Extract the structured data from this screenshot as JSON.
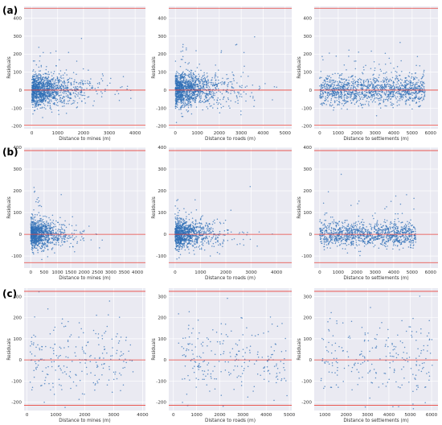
{
  "figure": {
    "row_labels": [
      "(a)",
      "(b)",
      "(c)"
    ],
    "colors": {
      "plot_background": "#eaeaf2",
      "grid": "#ffffff",
      "point": "#2f6fb5",
      "reference_line": "#e8413a",
      "tick_text": "#333333"
    }
  },
  "chart_data": [
    {
      "type": "scatter",
      "row": "(a)",
      "title": "",
      "xlabel": "Distance to mines (m)",
      "ylabel": "Residuals",
      "xlim": [
        -300,
        4400
      ],
      "ylim": [
        -215,
        465
      ],
      "xticks": [
        0,
        1000,
        2000,
        3000,
        4000
      ],
      "yticks": [
        -200,
        -100,
        0,
        100,
        200,
        300,
        400
      ],
      "hlines": [
        -195,
        0,
        455
      ],
      "grid": true,
      "cloud": {
        "n": 1300,
        "x_scale": 650,
        "x_max": 4200,
        "y_sd": 42,
        "tail": 0.06,
        "tail_sd": 130
      }
    },
    {
      "type": "scatter",
      "row": "(a)",
      "title": "",
      "xlabel": "Distance to roads (m)",
      "ylabel": "Residuals",
      "xlim": [
        -300,
        5300
      ],
      "ylim": [
        -215,
        465
      ],
      "xticks": [
        0,
        1000,
        2000,
        3000,
        4000,
        5000
      ],
      "yticks": [
        -200,
        -100,
        0,
        100,
        200,
        300,
        400
      ],
      "hlines": [
        -195,
        0,
        455
      ],
      "grid": true,
      "cloud": {
        "n": 1300,
        "x_scale": 800,
        "x_max": 4900,
        "y_sd": 45,
        "tail": 0.06,
        "tail_sd": 130
      }
    },
    {
      "type": "scatter",
      "row": "(a)",
      "title": "",
      "xlabel": "Distance to settlements (m)",
      "ylabel": "Residuals",
      "xlim": [
        -300,
        6400
      ],
      "ylim": [
        -215,
        465
      ],
      "xticks": [
        0,
        1000,
        2000,
        3000,
        4000,
        5000,
        6000
      ],
      "yticks": [
        -200,
        -100,
        0,
        100,
        200,
        300,
        400
      ],
      "hlines": [
        -195,
        0,
        455
      ],
      "grid": true,
      "cloud": {
        "n": 1300,
        "x_mode": "uniform",
        "x_min": 0,
        "x_max": 5700,
        "y_sd": 40,
        "tail": 0.08,
        "tail_sd": 120
      }
    },
    {
      "type": "scatter",
      "row": "(b)",
      "title": "",
      "xlabel": "Distance to mines (m)",
      "ylabel": "Residuals",
      "xlim": [
        -250,
        4300
      ],
      "ylim": [
        -155,
        400
      ],
      "xticks": [
        0,
        500,
        1000,
        1500,
        2000,
        2500,
        3000,
        3500,
        4000
      ],
      "yticks": [
        -100,
        0,
        100,
        200,
        300,
        400
      ],
      "hlines": [
        -130,
        0,
        385
      ],
      "grid": true,
      "cloud": {
        "n": 1100,
        "x_scale": 450,
        "x_max": 4100,
        "y_sd": 32,
        "tail": 0.07,
        "tail_sd": 90
      }
    },
    {
      "type": "scatter",
      "row": "(b)",
      "title": "",
      "xlabel": "Distance to roads (m)",
      "ylabel": "Residuals",
      "xlim": [
        -250,
        4600
      ],
      "ylim": [
        -155,
        400
      ],
      "xticks": [
        0,
        1000,
        2000,
        3000,
        4000
      ],
      "yticks": [
        -100,
        0,
        100,
        200,
        300,
        400
      ],
      "hlines": [
        -130,
        0,
        385
      ],
      "grid": true,
      "cloud": {
        "n": 1100,
        "x_scale": 550,
        "x_max": 4400,
        "y_sd": 32,
        "tail": 0.07,
        "tail_sd": 90
      }
    },
    {
      "type": "scatter",
      "row": "(b)",
      "title": "",
      "xlabel": "Distance to settlements (m)",
      "ylabel": "Residuals",
      "xlim": [
        -300,
        6400
      ],
      "ylim": [
        -155,
        400
      ],
      "xticks": [
        0,
        1000,
        2000,
        3000,
        4000,
        5000,
        6000
      ],
      "yticks": [
        -100,
        0,
        100,
        200,
        300,
        400
      ],
      "hlines": [
        -130,
        0,
        385
      ],
      "grid": true,
      "cloud": {
        "n": 1100,
        "x_mode": "uniform",
        "x_min": 0,
        "x_max": 5200,
        "y_sd": 28,
        "tail": 0.07,
        "tail_sd": 90
      }
    },
    {
      "type": "scatter",
      "row": "(c)",
      "title": "",
      "xlabel": "Distance to mines (m)",
      "ylabel": "Residuals",
      "xlim": [
        -100,
        4100
      ],
      "ylim": [
        -240,
        340
      ],
      "xticks": [
        0,
        1000,
        2000,
        3000,
        4000
      ],
      "yticks": [
        -200,
        -100,
        0,
        100,
        200,
        300
      ],
      "hlines": [
        -215,
        0,
        325
      ],
      "grid": true,
      "cloud": {
        "n": 230,
        "x_mode": "uniform",
        "x_min": 100,
        "x_max": 3700,
        "y_sd": 95,
        "tail": 0.03,
        "tail_sd": 150
      }
    },
    {
      "type": "scatter",
      "row": "(c)",
      "title": "",
      "xlabel": "Distance to roads (m)",
      "ylabel": "Residuals",
      "xlim": [
        -200,
        5100
      ],
      "ylim": [
        -240,
        340
      ],
      "xticks": [
        0,
        1000,
        2000,
        3000,
        4000,
        5000
      ],
      "yticks": [
        -200,
        -100,
        0,
        100,
        200,
        300
      ],
      "hlines": [
        -215,
        0,
        325
      ],
      "grid": true,
      "cloud": {
        "n": 230,
        "x_mode": "uniform",
        "x_min": 200,
        "x_max": 4900,
        "y_sd": 95,
        "tail": 0.03,
        "tail_sd": 150
      }
    },
    {
      "type": "scatter",
      "row": "(c)",
      "title": "",
      "xlabel": "Distance to settlements (m)",
      "ylabel": "Residuals",
      "xlim": [
        500,
        6300
      ],
      "ylim": [
        -240,
        340
      ],
      "xticks": [
        1000,
        2000,
        3000,
        4000,
        5000,
        6000
      ],
      "yticks": [
        -200,
        -100,
        0,
        100,
        200,
        300
      ],
      "hlines": [
        -215,
        0,
        325
      ],
      "grid": true,
      "cloud": {
        "n": 230,
        "x_mode": "uniform",
        "x_min": 800,
        "x_max": 6100,
        "y_sd": 95,
        "tail": 0.03,
        "tail_sd": 150
      }
    }
  ]
}
